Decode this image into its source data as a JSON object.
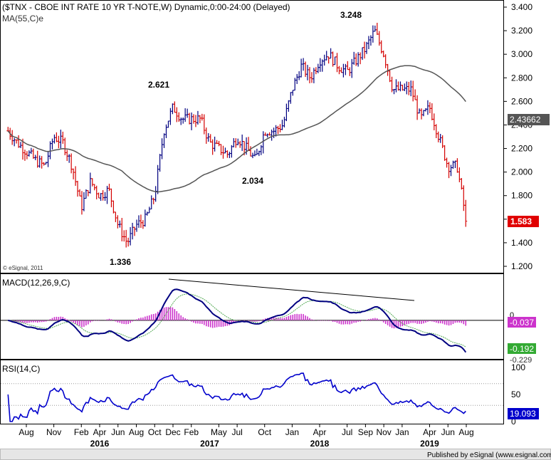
{
  "chart_data": {
    "type": "ohlc",
    "price": {
      "title": "($TNX - CBOE INT RATE 10 YR T-NOTE,W) Dynamic,0:00-24:00 (Delayed)",
      "ma_label": "MA(55,C)e",
      "ylim": [
        1.15,
        3.45
      ],
      "y_ticks": [
        "3.400",
        "3.200",
        "3.000",
        "2.800",
        "2.600",
        "2.400",
        "2.200",
        "2.000",
        "1.800",
        "1.600",
        "1.400",
        "1.200"
      ],
      "last_close": "1.583",
      "ma_last": "2.43662",
      "annotations": [
        "3.248",
        "2.621",
        "2.034",
        "1.336"
      ],
      "copyright": "© eSignal, 2011",
      "up_color": "#000080",
      "down_color": "#d40000",
      "ma_color": "#555555",
      "anchors": [
        {
          "date": "2015-06",
          "close": 2.35
        },
        {
          "date": "2015-07",
          "close": 2.25
        },
        {
          "date": "2015-09",
          "close": 2.1
        },
        {
          "date": "2015-10",
          "close": 2.05
        },
        {
          "date": "2015-11",
          "close": 2.3
        },
        {
          "date": "2015-12",
          "close": 2.25
        },
        {
          "date": "2016-01",
          "close": 2.05
        },
        {
          "date": "2016-02",
          "close": 1.7
        },
        {
          "date": "2016-03",
          "close": 1.92
        },
        {
          "date": "2016-04",
          "close": 1.8
        },
        {
          "date": "2016-05",
          "close": 1.85
        },
        {
          "date": "2016-06",
          "close": 1.55
        },
        {
          "date": "2016-07",
          "close": 1.4
        },
        {
          "date": "2016-08",
          "close": 1.55
        },
        {
          "date": "2016-09",
          "close": 1.6
        },
        {
          "date": "2016-10",
          "close": 1.8
        },
        {
          "date": "2016-11",
          "close": 2.35
        },
        {
          "date": "2016-12",
          "close": 2.55
        },
        {
          "date": "2017-01",
          "close": 2.45
        },
        {
          "date": "2017-02",
          "close": 2.45
        },
        {
          "date": "2017-03",
          "close": 2.45
        },
        {
          "date": "2017-04",
          "close": 2.25
        },
        {
          "date": "2017-06",
          "close": 2.15
        },
        {
          "date": "2017-07",
          "close": 2.3
        },
        {
          "date": "2017-09",
          "close": 2.1
        },
        {
          "date": "2017-10",
          "close": 2.35
        },
        {
          "date": "2017-11",
          "close": 2.35
        },
        {
          "date": "2017-12",
          "close": 2.4
        },
        {
          "date": "2018-01",
          "close": 2.7
        },
        {
          "date": "2018-02",
          "close": 2.9
        },
        {
          "date": "2018-03",
          "close": 2.8
        },
        {
          "date": "2018-04",
          "close": 2.95
        },
        {
          "date": "2018-05",
          "close": 3.0
        },
        {
          "date": "2018-06",
          "close": 2.9
        },
        {
          "date": "2018-07",
          "close": 2.85
        },
        {
          "date": "2018-08",
          "close": 2.95
        },
        {
          "date": "2018-09",
          "close": 3.05
        },
        {
          "date": "2018-10",
          "close": 3.2
        },
        {
          "date": "2018-11",
          "close": 3.0
        },
        {
          "date": "2018-12",
          "close": 2.7
        },
        {
          "date": "2019-01",
          "close": 2.7
        },
        {
          "date": "2019-02",
          "close": 2.7
        },
        {
          "date": "2019-03",
          "close": 2.45
        },
        {
          "date": "2019-04",
          "close": 2.55
        },
        {
          "date": "2019-05",
          "close": 2.3
        },
        {
          "date": "2019-06",
          "close": 2.05
        },
        {
          "date": "2019-07",
          "close": 2.05
        },
        {
          "date": "2019-08",
          "close": 1.583
        }
      ]
    },
    "macd": {
      "label": "MACD(12,26,9,C)",
      "ylim": [
        -0.27,
        0.32
      ],
      "zero_label": "0",
      "last_hist": "-0.037",
      "last_signal": "-0.192",
      "last_macd": "-0.229",
      "macd_color": "#000080",
      "signal_color": "#55aa55",
      "hist_color": "#cc33cc"
    },
    "rsi": {
      "label": "RSI(14,C)",
      "ylim": [
        0,
        100
      ],
      "y_ticks": [
        "100",
        "50",
        "0"
      ],
      "last": "19.093",
      "color": "#0000cc"
    },
    "x_axis": {
      "months": [
        {
          "label": "Aug",
          "date": "2015-08"
        },
        {
          "label": "Nov",
          "date": "2015-11"
        },
        {
          "label": "Feb",
          "date": "2016-02"
        },
        {
          "label": "Apr",
          "date": "2016-04"
        },
        {
          "label": "Jun",
          "date": "2016-06"
        },
        {
          "label": "Aug",
          "date": "2016-08"
        },
        {
          "label": "Oct",
          "date": "2016-10"
        },
        {
          "label": "Dec",
          "date": "2016-12"
        },
        {
          "label": "Feb",
          "date": "2017-02"
        },
        {
          "label": "May",
          "date": "2017-05"
        },
        {
          "label": "Jul",
          "date": "2017-07"
        },
        {
          "label": "Oct",
          "date": "2017-10"
        },
        {
          "label": "Jan",
          "date": "2018-01"
        },
        {
          "label": "Apr",
          "date": "2018-04"
        },
        {
          "label": "Jul",
          "date": "2018-07"
        },
        {
          "label": "Sep",
          "date": "2018-09"
        },
        {
          "label": "Nov",
          "date": "2018-11"
        },
        {
          "label": "Jan",
          "date": "2019-01"
        },
        {
          "label": "Apr",
          "date": "2019-04"
        },
        {
          "label": "Jun",
          "date": "2019-06"
        },
        {
          "label": "Aug",
          "date": "2019-08"
        }
      ],
      "years": [
        {
          "label": "2016",
          "date": "2016-04"
        },
        {
          "label": "2017",
          "date": "2017-04"
        },
        {
          "label": "2018",
          "date": "2018-04"
        },
        {
          "label": "2019",
          "date": "2019-04"
        }
      ]
    },
    "footer": "Published by eSignal (www.esignal.com)"
  }
}
